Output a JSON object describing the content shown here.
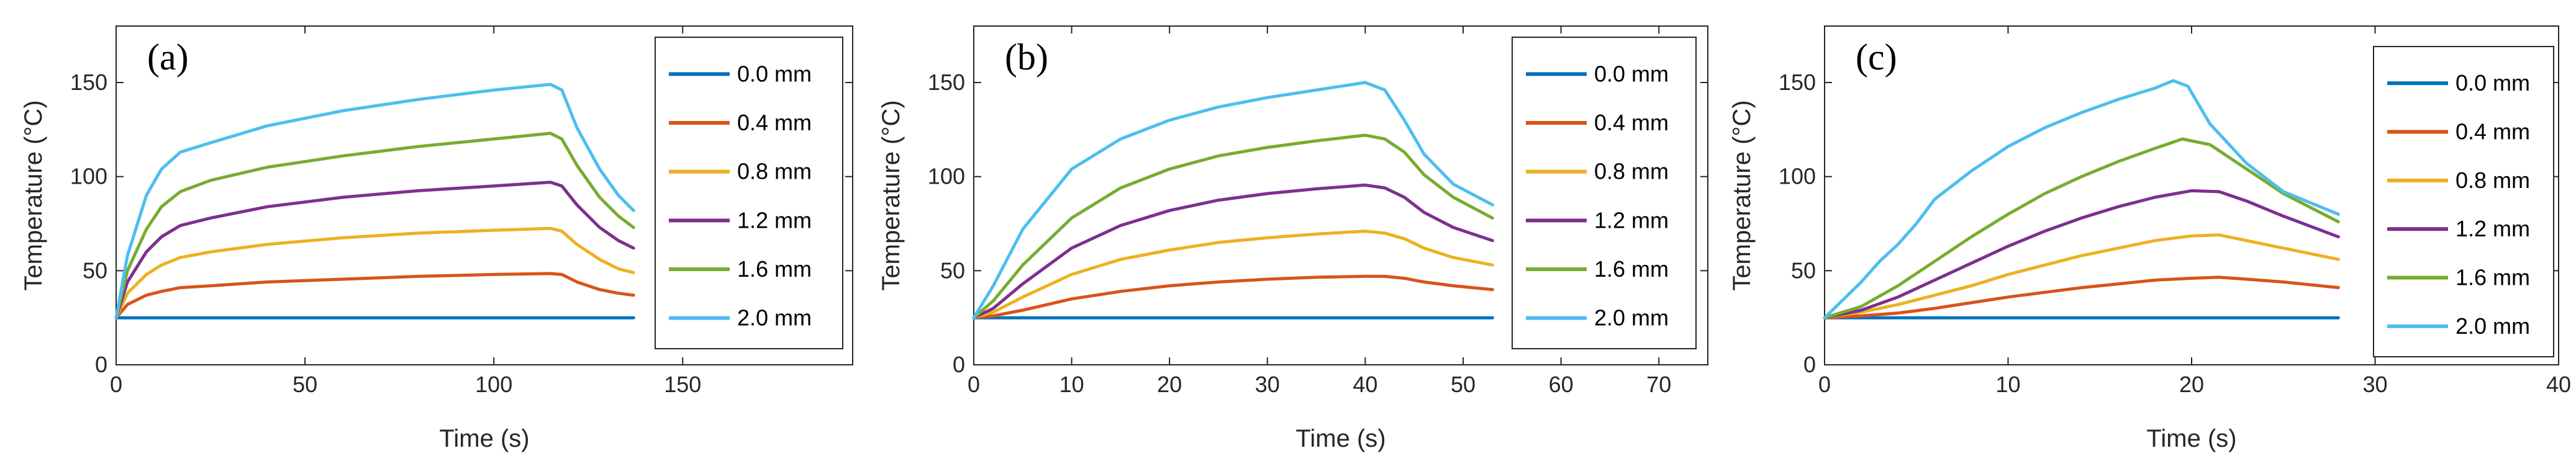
{
  "chart_data": [
    {
      "type": "line",
      "panel_label": "(a)",
      "xlabel": "Time (s)",
      "ylabel": "Temperature (°C)",
      "xlim": [
        0,
        195
      ],
      "ylim": [
        0,
        180
      ],
      "xticks": [
        0,
        50,
        100,
        150
      ],
      "yticks": [
        0,
        50,
        100,
        150
      ],
      "legend_position": "top-right",
      "grid": false,
      "series": [
        {
          "name": "0.0 mm",
          "color": "#0072BD",
          "x": [
            0,
            137
          ],
          "y": [
            25,
            25
          ]
        },
        {
          "name": "0.4 mm",
          "color": "#D95319",
          "x": [
            0,
            3,
            8,
            12,
            17,
            25,
            40,
            60,
            80,
            100,
            115,
            118,
            122,
            128,
            133,
            137
          ],
          "y": [
            25,
            32,
            37,
            39,
            41,
            42,
            44,
            45.5,
            47,
            48,
            48.5,
            48,
            44,
            40,
            38,
            37
          ]
        },
        {
          "name": "0.8 mm",
          "color": "#EDB120",
          "x": [
            0,
            3,
            8,
            12,
            17,
            25,
            40,
            60,
            80,
            100,
            115,
            118,
            122,
            128,
            133,
            137
          ],
          "y": [
            25,
            38,
            48,
            53,
            57,
            60,
            64,
            67.5,
            70,
            71.5,
            72.5,
            71,
            64,
            56,
            51,
            49
          ]
        },
        {
          "name": "1.2 mm",
          "color": "#7E2F8E",
          "x": [
            0,
            3,
            8,
            12,
            17,
            25,
            40,
            60,
            80,
            100,
            115,
            118,
            122,
            128,
            133,
            137
          ],
          "y": [
            25,
            44,
            60,
            68,
            74,
            78,
            84,
            89,
            92.5,
            95,
            97,
            95,
            85,
            73,
            66,
            62
          ]
        },
        {
          "name": "1.6 mm",
          "color": "#77AC30",
          "x": [
            0,
            3,
            8,
            12,
            17,
            25,
            40,
            60,
            80,
            100,
            115,
            118,
            122,
            128,
            133,
            137
          ],
          "y": [
            25,
            50,
            72,
            84,
            92,
            98,
            105,
            111,
            116,
            120,
            123,
            120,
            106,
            89,
            79,
            73
          ]
        },
        {
          "name": "2.0 mm",
          "color": "#4DBEEE",
          "x": [
            0,
            3,
            8,
            12,
            17,
            25,
            40,
            60,
            80,
            100,
            115,
            118,
            122,
            128,
            133,
            137
          ],
          "y": [
            25,
            58,
            90,
            104,
            113,
            118,
            127,
            135,
            141,
            146,
            149,
            146,
            126,
            104,
            90,
            82
          ]
        }
      ]
    },
    {
      "type": "line",
      "panel_label": "(b)",
      "xlabel": "Time (s)",
      "ylabel": "Temperature (°C)",
      "xlim": [
        0,
        75
      ],
      "ylim": [
        0,
        180
      ],
      "xticks": [
        0,
        10,
        20,
        30,
        40,
        50,
        60,
        70
      ],
      "yticks": [
        0,
        50,
        100,
        150
      ],
      "legend_position": "top-right",
      "grid": false,
      "series": [
        {
          "name": "0.0 mm",
          "color": "#0072BD",
          "x": [
            0,
            53
          ],
          "y": [
            25,
            25
          ]
        },
        {
          "name": "0.4 mm",
          "color": "#D95319",
          "x": [
            0,
            2,
            5,
            10,
            15,
            20,
            25,
            30,
            35,
            40,
            42,
            44,
            46,
            49,
            53
          ],
          "y": [
            25,
            26,
            29,
            35,
            39,
            42,
            44,
            45.5,
            46.5,
            47,
            47,
            46,
            44,
            42,
            40
          ]
        },
        {
          "name": "0.8 mm",
          "color": "#EDB120",
          "x": [
            0,
            2,
            5,
            10,
            15,
            20,
            25,
            30,
            35,
            40,
            42,
            44,
            46,
            49,
            53
          ],
          "y": [
            25,
            28,
            36,
            48,
            56,
            61,
            65,
            67.5,
            69.5,
            71,
            70,
            67,
            62,
            57,
            53
          ]
        },
        {
          "name": "1.2 mm",
          "color": "#7E2F8E",
          "x": [
            0,
            2,
            5,
            10,
            15,
            20,
            25,
            30,
            35,
            40,
            42,
            44,
            46,
            49,
            53
          ],
          "y": [
            25,
            30,
            43,
            62,
            74,
            82,
            87.5,
            91,
            93.5,
            95.5,
            94,
            89,
            81,
            73,
            66
          ]
        },
        {
          "name": "1.6 mm",
          "color": "#77AC30",
          "x": [
            0,
            2,
            5,
            10,
            15,
            20,
            25,
            30,
            35,
            40,
            42,
            44,
            46,
            49,
            53
          ],
          "y": [
            25,
            34,
            53,
            78,
            94,
            104,
            111,
            115.5,
            119,
            122,
            120,
            113,
            101,
            89,
            78
          ]
        },
        {
          "name": "2.0 mm",
          "color": "#4DBEEE",
          "x": [
            0,
            2,
            5,
            10,
            15,
            20,
            25,
            30,
            35,
            40,
            42,
            44,
            46,
            49,
            53
          ],
          "y": [
            25,
            42,
            72,
            104,
            120,
            130,
            137,
            142,
            146,
            150,
            146,
            130,
            112,
            96,
            85
          ]
        }
      ]
    },
    {
      "type": "line",
      "panel_label": "(c)",
      "xlabel": "Time (s)",
      "ylabel": "Temperature (°C)",
      "xlim": [
        0,
        40
      ],
      "ylim": [
        0,
        180
      ],
      "xticks": [
        0,
        10,
        20,
        30,
        40
      ],
      "yticks": [
        0,
        50,
        100,
        150
      ],
      "legend_position": "top-right",
      "grid": false,
      "series": [
        {
          "name": "0.0 mm",
          "color": "#0072BD",
          "x": [
            0,
            28
          ],
          "y": [
            25,
            25
          ]
        },
        {
          "name": "0.4 mm",
          "color": "#D95319",
          "x": [
            0,
            2,
            4,
            6,
            8,
            10,
            12,
            14,
            16,
            18,
            20,
            21.5,
            23,
            25,
            28
          ],
          "y": [
            25,
            26,
            27.5,
            30,
            33,
            36,
            38.5,
            41,
            43,
            45,
            46,
            46.5,
            45.5,
            44,
            41
          ]
        },
        {
          "name": "0.8 mm",
          "color": "#EDB120",
          "x": [
            0,
            2,
            4,
            6,
            8,
            10,
            12,
            14,
            16,
            18,
            20,
            21.5,
            23,
            25,
            28
          ],
          "y": [
            25,
            28,
            32,
            37,
            42,
            48,
            53,
            58,
            62,
            66,
            68.5,
            69,
            66,
            62,
            56
          ]
        },
        {
          "name": "1.2 mm",
          "color": "#7E2F8E",
          "x": [
            0,
            2,
            4,
            6,
            8,
            10,
            12,
            14,
            16,
            18,
            20,
            21.5,
            23,
            25,
            28
          ],
          "y": [
            25,
            29,
            36,
            45,
            54,
            63,
            71,
            78,
            84,
            89,
            92.5,
            92,
            87,
            79,
            68
          ]
        },
        {
          "name": "1.6 mm",
          "color": "#77AC30",
          "x": [
            0,
            2,
            4,
            6,
            8,
            10,
            12,
            14,
            16,
            18,
            19.5,
            21,
            23,
            25,
            28
          ],
          "y": [
            25,
            31,
            42,
            55,
            68,
            80,
            91,
            100,
            108,
            115,
            120,
            117,
            104,
            91,
            76
          ]
        },
        {
          "name": "2.0 mm",
          "color": "#4DBEEE",
          "x": [
            0,
            2,
            3,
            4,
            5,
            6,
            8,
            10,
            12,
            14,
            16,
            18,
            19,
            19.8,
            21,
            23,
            25,
            28
          ],
          "y": [
            25,
            44,
            55,
            64,
            75,
            88,
            103,
            116,
            126,
            134,
            141,
            147,
            151,
            148,
            128,
            107,
            92,
            80
          ]
        }
      ]
    }
  ]
}
